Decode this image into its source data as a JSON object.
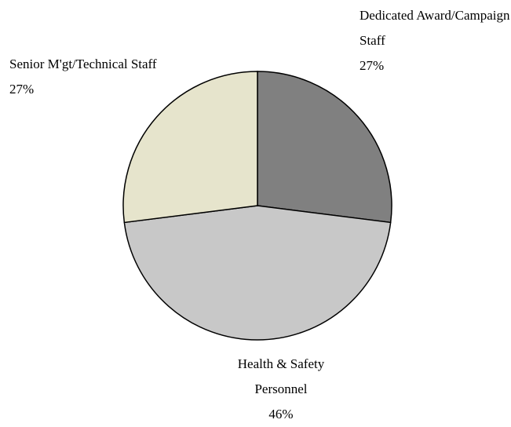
{
  "chart_data": {
    "type": "pie",
    "categories": [
      "Dedicated Award/Campaign Staff",
      "Health & Safety Personnel",
      "Senior M'gt/Technical Staff"
    ],
    "values": [
      27,
      46,
      27
    ],
    "value_labels": [
      "27%",
      "46%",
      "27%"
    ],
    "colors": [
      "#808080",
      "#c8c8c8",
      "#e6e4cc"
    ]
  }
}
